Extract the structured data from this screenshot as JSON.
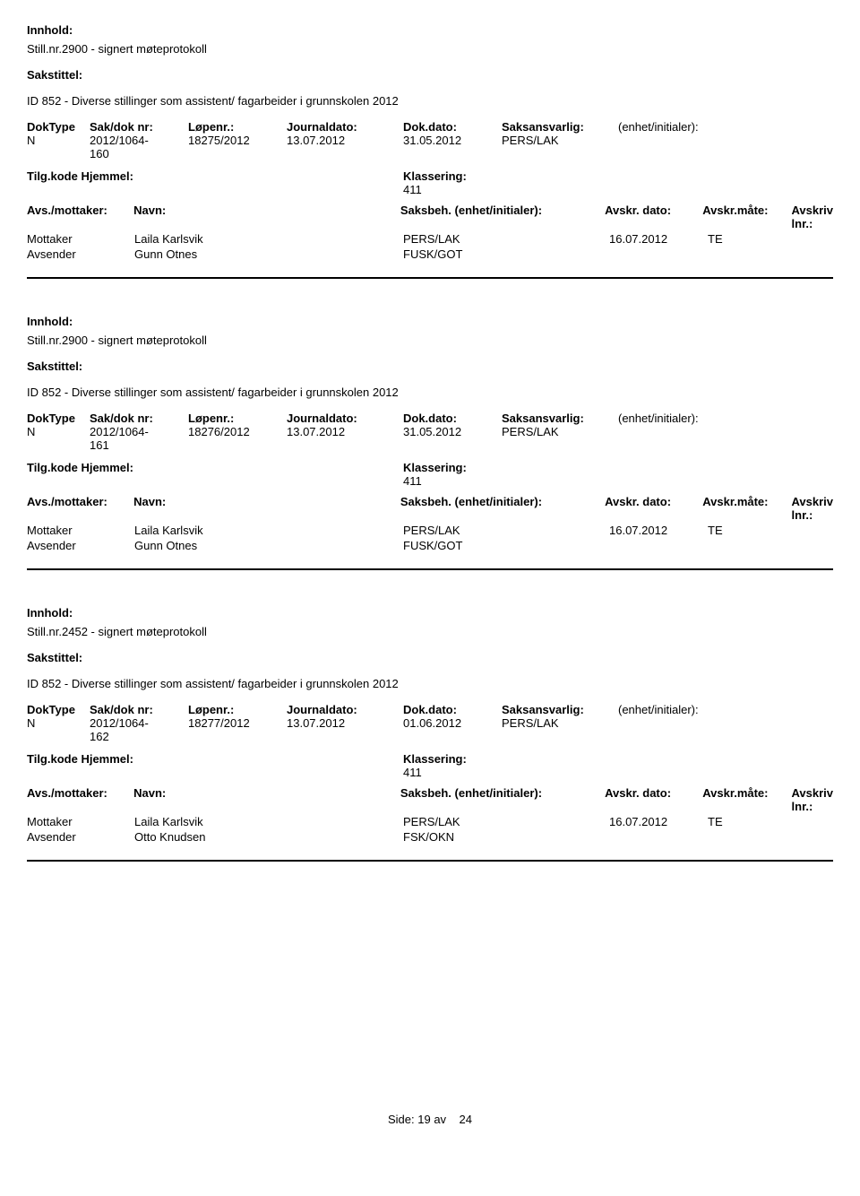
{
  "labels": {
    "innhold": "Innhold:",
    "sakstittel": "Sakstittel:",
    "doktype": "DokType",
    "sakdok": "Sak/dok nr:",
    "lopenr": "Løpenr.:",
    "journaldato": "Journaldato:",
    "dokdato": "Dok.dato:",
    "saksansvarlig": "Saksansvarlig:",
    "enhet": "(enhet/initialer):",
    "tilgkode": "Tilg.kode",
    "hjemmel": "Hjemmel:",
    "klassering": "Klassering:",
    "avsmottaker": "Avs./mottaker:",
    "navn": "Navn:",
    "saksbeh": "Saksbeh.",
    "enhet2": "(enhet/initialer):",
    "avskrdato": "Avskr. dato:",
    "avskrmaate": "Avskr.måte:",
    "avskrivlnr": "Avskriv lnr.:",
    "mottaker": "Mottaker",
    "avsender": "Avsender"
  },
  "records": [
    {
      "title": "Still.nr.2900 - signert møteprotokoll",
      "case_title": "ID 852 - Diverse stillinger som assistent/ fagarbeider i grunnskolen 2012",
      "doktype": "N",
      "sakdok": "2012/1064-160",
      "lopenr": "18275/2012",
      "journaldato": "13.07.2012",
      "dokdato": "31.05.2012",
      "saksansvarlig": "PERS/LAK",
      "klassering": "411",
      "parties": [
        {
          "role": "Mottaker",
          "navn": "Laila Karlsvik",
          "saksbeh": "PERS/LAK",
          "avskrdato": "16.07.2012",
          "avskrmaate": "TE"
        },
        {
          "role": "Avsender",
          "navn": "Gunn Otnes",
          "saksbeh": "FUSK/GOT",
          "avskrdato": "",
          "avskrmaate": ""
        }
      ]
    },
    {
      "title": "Still.nr.2900 - signert møteprotokoll",
      "case_title": "ID 852 - Diverse stillinger som assistent/ fagarbeider i grunnskolen 2012",
      "doktype": "N",
      "sakdok": "2012/1064-161",
      "lopenr": "18276/2012",
      "journaldato": "13.07.2012",
      "dokdato": "31.05.2012",
      "saksansvarlig": "PERS/LAK",
      "klassering": "411",
      "parties": [
        {
          "role": "Mottaker",
          "navn": "Laila Karlsvik",
          "saksbeh": "PERS/LAK",
          "avskrdato": "16.07.2012",
          "avskrmaate": "TE"
        },
        {
          "role": "Avsender",
          "navn": "Gunn Otnes",
          "saksbeh": "FUSK/GOT",
          "avskrdato": "",
          "avskrmaate": ""
        }
      ]
    },
    {
      "title": "Still.nr.2452 - signert møteprotokoll",
      "case_title": "ID 852 - Diverse stillinger som assistent/ fagarbeider i grunnskolen 2012",
      "doktype": "N",
      "sakdok": "2012/1064-162",
      "lopenr": "18277/2012",
      "journaldato": "13.07.2012",
      "dokdato": "01.06.2012",
      "saksansvarlig": "PERS/LAK",
      "klassering": "411",
      "parties": [
        {
          "role": "Mottaker",
          "navn": "Laila Karlsvik",
          "saksbeh": "PERS/LAK",
          "avskrdato": "16.07.2012",
          "avskrmaate": "TE"
        },
        {
          "role": "Avsender",
          "navn": "Otto Knudsen",
          "saksbeh": "FSK/OKN",
          "avskrdato": "",
          "avskrmaate": ""
        }
      ]
    }
  ],
  "footer": {
    "side_label": "Side:",
    "current": "19",
    "av_label": "av",
    "total": "24"
  }
}
